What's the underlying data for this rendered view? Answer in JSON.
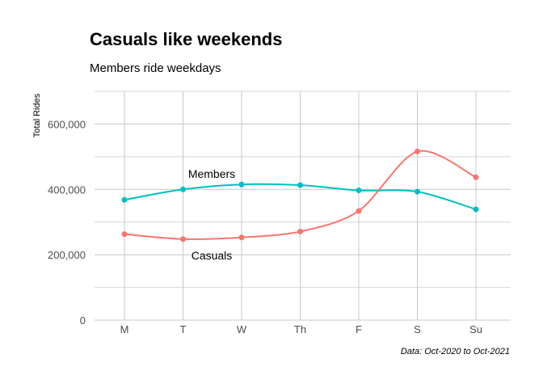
{
  "chart_data": {
    "type": "line",
    "title": "Casuals like weekends",
    "subtitle": "Members ride weekdays",
    "caption": "Data: Oct-2020 to Oct-2021",
    "xlabel": "",
    "ylabel": "Total Rides",
    "categories": [
      "M",
      "T",
      "W",
      "Th",
      "F",
      "S",
      "Su"
    ],
    "ylim": [
      0,
      700000
    ],
    "yticks": [
      0,
      200000,
      400000,
      600000
    ],
    "ytick_labels": [
      "0",
      "200,000",
      "400,000",
      "600,000"
    ],
    "grid": true,
    "legend": "none",
    "series": [
      {
        "name": "Members",
        "color": "#00BFC4",
        "values": [
          368000,
          400000,
          415000,
          413000,
          397000,
          393000,
          339000
        ]
      },
      {
        "name": "Casuals",
        "color": "#F8766D",
        "values": [
          263000,
          248000,
          253000,
          271000,
          334000,
          516000,
          437000
        ]
      }
    ]
  }
}
